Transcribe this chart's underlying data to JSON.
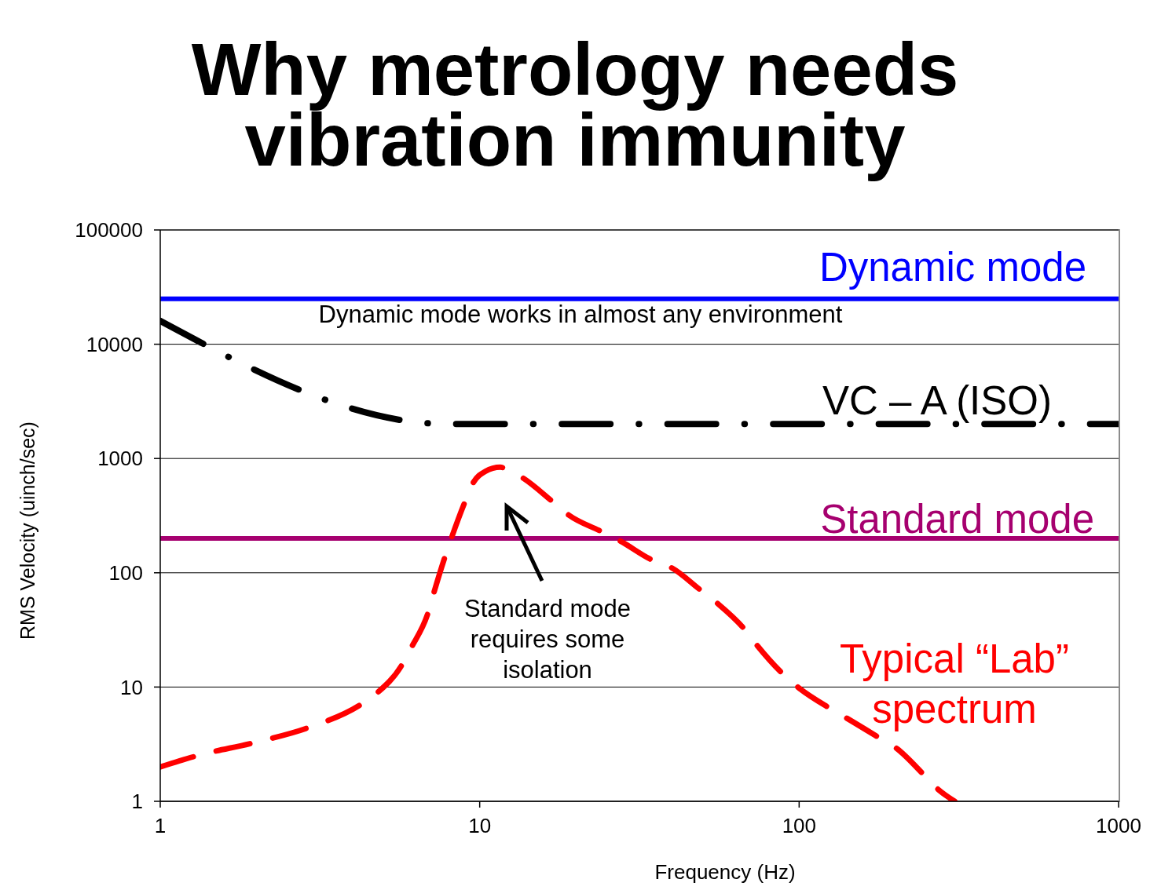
{
  "chart_data": {
    "type": "line",
    "title": "Why metrology needs vibration immunity",
    "xlabel": "Frequency (Hz)",
    "ylabel": "RMS Velocity (uinch/sec)",
    "log": "xy",
    "xlim": [
      1,
      1000
    ],
    "xticks": [
      1,
      10,
      100,
      1000
    ],
    "ylim": [
      1,
      100000
    ],
    "yticks": [
      1,
      10,
      100,
      1000,
      10000,
      100000
    ],
    "grid": "y",
    "marker": "none",
    "series": [
      {
        "name": "VC – A (ISO)",
        "color": "#000000",
        "line_style": "dashdot",
        "x": [
          1,
          8,
          1000
        ],
        "values": [
          16000,
          2000,
          2000
        ]
      },
      {
        "name": "Typical “Lab” spectrum",
        "color": "#ff0000",
        "line_style": "dashed",
        "x": [
          1,
          1.3,
          2,
          2.9,
          4.3,
          4.8,
          5.7,
          6.1,
          6.9,
          7.2,
          7.8,
          8.2,
          9,
          9.5,
          10.4,
          11.6,
          12.1,
          13.6,
          16.9,
          19,
          24,
          27.5,
          34.5,
          40,
          49,
          55.5,
          67.5,
          74,
          89,
          99,
          125,
          140,
          178,
          202,
          246,
          270,
          307
        ],
        "values": [
          2,
          2.5,
          3.3,
          4.4,
          7.2,
          9,
          15.5,
          22,
          45,
          68,
          140,
          210,
          420,
          600,
          770,
          840,
          810,
          680,
          420,
          320,
          230,
          190,
          130,
          110,
          71,
          54,
          32,
          23,
          13,
          10,
          6.5,
          5.4,
          3.6,
          2.9,
          1.7,
          1.3,
          1
        ]
      }
    ],
    "ref_lines": [
      {
        "axis": "y",
        "value": 25000,
        "label": "Dynamic mode",
        "color": "#0000ff"
      },
      {
        "axis": "y",
        "value": 200,
        "label": "Standard mode",
        "color": "#a6006f"
      }
    ],
    "annotations": [
      "Dynamic mode works in almost any environment",
      "Standard mode requires some isolation"
    ]
  }
}
